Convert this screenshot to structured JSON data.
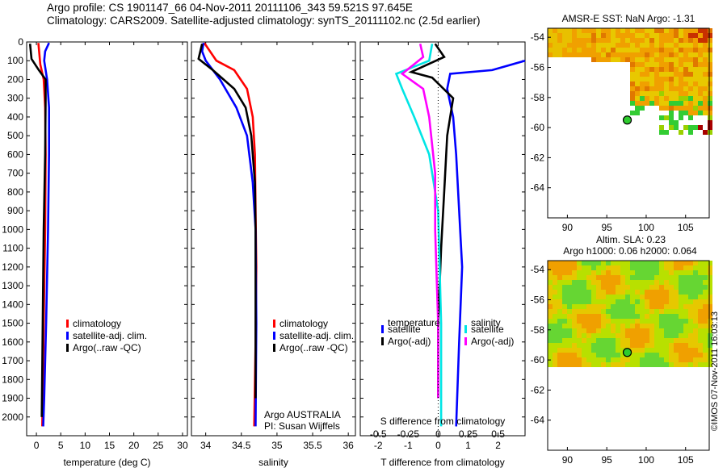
{
  "header": {
    "line1": "Argo profile: CS 1901147_66 04-Nov-2011 20111106_343 59.521S 97.645E",
    "line2": "Climatology: CARS2009. Satellite-adjusted climatology: synTS_20111102.nc (2.5d earlier)"
  },
  "chart_data": [
    {
      "id": "temperature",
      "type": "line",
      "xlabel": "temperature (deg C)",
      "ylabel": "",
      "xlim": [
        -2,
        31
      ],
      "ylim": [
        0,
        2100
      ],
      "y_reversed": true,
      "xticks": [
        0,
        5,
        10,
        15,
        20,
        25,
        30
      ],
      "yticks": [
        0,
        100,
        200,
        300,
        400,
        500,
        600,
        700,
        800,
        900,
        1000,
        1100,
        1200,
        1300,
        1400,
        1500,
        1600,
        1700,
        1800,
        1900,
        2000
      ],
      "legend": [
        "climatology",
        "satellite-adj. clim.",
        "Argo(..raw -QC)"
      ],
      "series": [
        {
          "name": "climatology",
          "color": "#ff0000",
          "x": [
            0.4,
            0.8,
            1.5,
            1.8,
            1.9,
            1.8,
            1.5,
            1.2
          ],
          "y": [
            5,
            120,
            200,
            350,
            600,
            1000,
            1500,
            2050
          ]
        },
        {
          "name": "satellite-adj. clim.",
          "color": "#0000ff",
          "x": [
            2.6,
            1.8,
            1.6,
            2.2,
            2.6,
            2.6,
            2.4,
            2.0,
            1.6,
            1.4
          ],
          "y": [
            5,
            50,
            100,
            200,
            350,
            600,
            1000,
            1500,
            1900,
            2050
          ]
        },
        {
          "name": "Argo(..raw -QC)",
          "color": "#000000",
          "x": [
            -1.3,
            -1.0,
            0.5,
            1.9,
            1.9,
            1.8,
            1.5,
            1.3,
            1.1
          ],
          "y": [
            10,
            90,
            150,
            200,
            300,
            600,
            1000,
            1500,
            2000
          ]
        }
      ]
    },
    {
      "id": "salinity",
      "type": "line",
      "xlabel": "salinity",
      "xlim": [
        33.8,
        36.1
      ],
      "ylim": [
        0,
        2100
      ],
      "y_reversed": true,
      "xticks": [
        34,
        34.5,
        35,
        35.5,
        36
      ],
      "legend": [
        "climatology",
        "satellite-adj. clim.",
        "Argo(..raw -QC)"
      ],
      "annotations": [
        "Argo AUSTRALIA",
        "PI: Susan Wijffels"
      ],
      "series": [
        {
          "name": "climatology",
          "color": "#ff0000",
          "x": [
            33.98,
            34.15,
            34.4,
            34.58,
            34.66,
            34.69,
            34.7,
            34.71,
            34.7,
            34.68
          ],
          "y": [
            5,
            100,
            150,
            250,
            400,
            600,
            900,
            1200,
            1600,
            2050
          ]
        },
        {
          "name": "satellite-adj. clim.",
          "color": "#0000ff",
          "x": [
            33.97,
            33.95,
            34.0,
            34.2,
            34.43,
            34.58,
            34.66,
            34.7,
            34.71,
            34.7
          ],
          "y": [
            5,
            50,
            100,
            200,
            350,
            500,
            750,
            1000,
            1500,
            2050
          ]
        },
        {
          "name": "Argo(..raw -QC)",
          "color": "#000000",
          "x": [
            33.95,
            33.9,
            34.1,
            34.4,
            34.56,
            34.64,
            34.69,
            34.7,
            34.7
          ],
          "y": [
            10,
            90,
            150,
            250,
            350,
            500,
            750,
            1000,
            1900
          ]
        }
      ]
    },
    {
      "id": "difference",
      "type": "line",
      "xlabel": "T difference from climatology",
      "xlabel_top": "S difference from climatology",
      "xlim": [
        -2.6,
        2.9
      ],
      "ylim": [
        0,
        2100
      ],
      "y_reversed": true,
      "xticks": [
        -2,
        -1,
        0,
        1,
        2
      ],
      "xtick_labels_s": [
        "-0.5",
        "-0.25",
        "0",
        "0.25",
        "0.5"
      ],
      "legend": {
        "temperature": [
          "satellite",
          "Argo(-adj)"
        ],
        "salinity": [
          "satellite",
          "Argo(-adj)"
        ]
      },
      "legend_headers": [
        "temperature",
        "salinity"
      ],
      "series": [
        {
          "name": "temperature satellite",
          "color": "#0000ff",
          "x": [
            2.9,
            1.8,
            0.4,
            0.3,
            0.5,
            0.6,
            0.7,
            0.8,
            0.7,
            0.6
          ],
          "y": [
            100,
            150,
            170,
            250,
            400,
            600,
            900,
            1200,
            1600,
            2050
          ]
        },
        {
          "name": "temperature Argo(-adj)",
          "color": "#000000",
          "x": [
            -0.1,
            0.2,
            -0.9,
            -0.2,
            0.5,
            0.3,
            0.2,
            0.1,
            0.0,
            0.0
          ],
          "y": [
            10,
            80,
            160,
            190,
            300,
            500,
            800,
            1100,
            1500,
            1900
          ]
        },
        {
          "name": "salinity satellite",
          "color": "#00e5e5",
          "x": [
            -0.2,
            -0.3,
            -1.4,
            -1.2,
            -0.8,
            -0.3,
            0.0,
            0.1,
            0.1
          ],
          "y": [
            10,
            100,
            170,
            250,
            400,
            600,
            900,
            1500,
            2050
          ]
        },
        {
          "name": "salinity Argo(-adj)",
          "color": "#ff00ff",
          "x": [
            -0.6,
            -0.5,
            -1.2,
            -0.5,
            -0.3,
            -0.1,
            -0.1,
            0.0,
            0.0
          ],
          "y": [
            10,
            80,
            170,
            250,
            400,
            700,
            1000,
            1500,
            1900
          ]
        }
      ]
    },
    {
      "id": "sst_map",
      "type": "heatmap",
      "title": "AMSR-E SST: NaN Argo: -1.31",
      "xticks": [
        90,
        95,
        100,
        105
      ],
      "yticks": [
        -54,
        -56,
        -58,
        -60,
        -62,
        -64
      ],
      "xlim": [
        87.5,
        108
      ],
      "ylim": [
        -66,
        -53.4
      ],
      "argo_position": [
        97.6,
        -59.5
      ]
    },
    {
      "id": "sla_map",
      "type": "heatmap",
      "title": "Altim. SLA: 0.23",
      "subtitle": "Argo h1000: 0.06 h2000: 0.064",
      "xticks": [
        90,
        95,
        100,
        105
      ],
      "yticks": [
        -54,
        -56,
        -58,
        -60,
        -62,
        -64
      ],
      "xlim": [
        87.5,
        108
      ],
      "ylim": [
        -66,
        -53.4
      ],
      "argo_position": [
        97.6,
        -59.5
      ]
    }
  ],
  "side_label": "©IMOS 07-Nov-2011 16:03:13",
  "colors": {
    "frame": "#000000",
    "green": "#2ecc2e",
    "yellow": "#e8d800",
    "orange": "#f0a000",
    "dark_red": "#a80000"
  }
}
